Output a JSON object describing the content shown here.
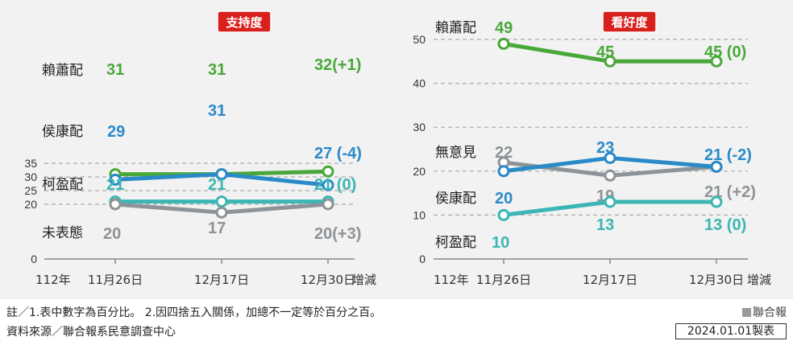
{
  "chart_data": [
    {
      "type": "line",
      "title": "支持度",
      "ylim": [
        0,
        35
      ],
      "yticks": [
        "0",
        "20",
        "25",
        "30",
        "35"
      ],
      "x_prefix": "112年",
      "x": [
        "11月26日",
        "12月17日",
        "12月30日"
      ],
      "change_label": "增減",
      "series": [
        {
          "name": "賴蕭配",
          "color": "#4aa83a",
          "values": [
            31,
            31,
            32
          ],
          "labels": [
            "31",
            "31",
            "32(+1)"
          ]
        },
        {
          "name": "侯康配",
          "color": "#2a8ac8",
          "values": [
            29,
            31,
            27
          ],
          "labels": [
            "29",
            "31",
            "27 (-4)"
          ]
        },
        {
          "name": "柯盈配",
          "color": "#3bb6b4",
          "values": [
            21,
            21,
            21
          ],
          "labels": [
            "21",
            "21",
            "21 (0)"
          ]
        },
        {
          "name": "未表態",
          "color": "#8e9397",
          "values": [
            20,
            17,
            20
          ],
          "labels": [
            "20",
            "17",
            "20(+3)"
          ]
        }
      ]
    },
    {
      "type": "line",
      "title": "看好度",
      "ylim": [
        0,
        50
      ],
      "yticks": [
        "0",
        "10",
        "20",
        "30",
        "40",
        "50"
      ],
      "x_prefix": "112年",
      "x": [
        "11月26日",
        "12月17日",
        "12月30日"
      ],
      "change_label": "增減",
      "series": [
        {
          "name": "賴蕭配",
          "color": "#4aa83a",
          "values": [
            49,
            45,
            45
          ],
          "labels": [
            "49",
            "45",
            "45 (0)"
          ]
        },
        {
          "name": "無意見",
          "color": "#8e9397",
          "values": [
            22,
            19,
            21
          ],
          "labels": [
            "22",
            "19",
            "21 (+2)"
          ]
        },
        {
          "name": "侯康配",
          "color": "#2a8ac8",
          "values": [
            20,
            23,
            21
          ],
          "labels": [
            "20",
            "23",
            "21 (-2)"
          ]
        },
        {
          "name": "柯盈配",
          "color": "#3bb6b4",
          "values": [
            10,
            13,
            13
          ],
          "labels": [
            "10",
            "13",
            "13 (0)"
          ]
        }
      ]
    }
  ],
  "footer": {
    "note": "註／1.表中數字為百分比。  2.因四捨五入關係，加總不一定等於百分之百。",
    "source": "資料來源／聯合報系民意調查中心",
    "publisher": "聯合報",
    "date": "2024.01.01製表"
  }
}
